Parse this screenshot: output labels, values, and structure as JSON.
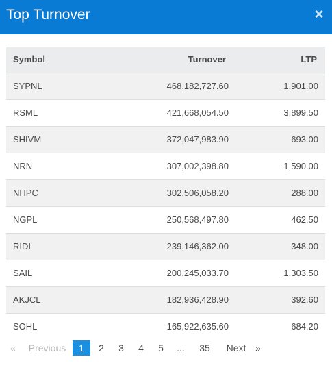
{
  "header": {
    "title": "Top Turnover",
    "close_symbol": "×"
  },
  "table": {
    "columns": [
      "Symbol",
      "Turnover",
      "LTP"
    ],
    "rows": [
      {
        "symbol": "SYPNL",
        "turnover": "468,182,727.60",
        "ltp": "1,901.00"
      },
      {
        "symbol": "RSML",
        "turnover": "421,668,054.50",
        "ltp": "3,899.50"
      },
      {
        "symbol": "SHIVM",
        "turnover": "372,047,983.90",
        "ltp": "693.00"
      },
      {
        "symbol": "NRN",
        "turnover": "307,002,398.80",
        "ltp": "1,590.00"
      },
      {
        "symbol": "NHPC",
        "turnover": "302,506,058.20",
        "ltp": "288.00"
      },
      {
        "symbol": "NGPL",
        "turnover": "250,568,497.80",
        "ltp": "462.50"
      },
      {
        "symbol": "RIDI",
        "turnover": "239,146,362.00",
        "ltp": "348.00"
      },
      {
        "symbol": "SAIL",
        "turnover": "200,245,033.70",
        "ltp": "1,303.50"
      },
      {
        "symbol": "AKJCL",
        "turnover": "182,936,428.90",
        "ltp": "392.60"
      },
      {
        "symbol": "SOHL",
        "turnover": "165,922,635.60",
        "ltp": "684.20"
      }
    ]
  },
  "pagination": {
    "first_symbol": "«",
    "previous_label": "Previous",
    "pages": [
      "1",
      "2",
      "3",
      "4",
      "5"
    ],
    "ellipsis": "...",
    "last_page": "35",
    "next_label": "Next",
    "last_symbol": "»",
    "current_page": "1"
  },
  "colors": {
    "header": "#0a7bd4",
    "active_page": "#1b8fe0"
  }
}
